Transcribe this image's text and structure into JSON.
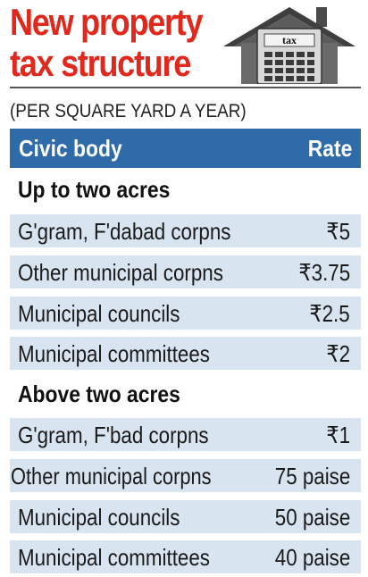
{
  "title": {
    "line1": "New property",
    "line2": "tax structure"
  },
  "graphic": {
    "icon": "house-calculator-icon",
    "label": "tax"
  },
  "subtitle": "(PER SQUARE YARD A YEAR)",
  "table": {
    "headers": {
      "left": "Civic body",
      "right": "Rate"
    },
    "sections": [
      {
        "title": "Up to two acres",
        "rows": [
          {
            "body": "G'gram, F'dabad corpns",
            "rate": "₹5"
          },
          {
            "body": "Other municipal corpns",
            "rate": "₹3.75"
          },
          {
            "body": "Municipal councils",
            "rate": "₹2.5"
          },
          {
            "body": "Municipal committees",
            "rate": "₹2"
          }
        ]
      },
      {
        "title": "Above two acres",
        "rows": [
          {
            "body": "G'gram, F'bad corpns",
            "rate": "₹1"
          },
          {
            "body": "Other municipal corpns",
            "rate": "75 paise"
          },
          {
            "body": "Municipal councils",
            "rate": "50 paise"
          },
          {
            "body": "Municipal committees",
            "rate": "40 paise"
          }
        ]
      }
    ]
  },
  "colors": {
    "title": "#e0281c",
    "header_bg": "#2f6ba8",
    "row_bg": "#d9e4f1"
  }
}
